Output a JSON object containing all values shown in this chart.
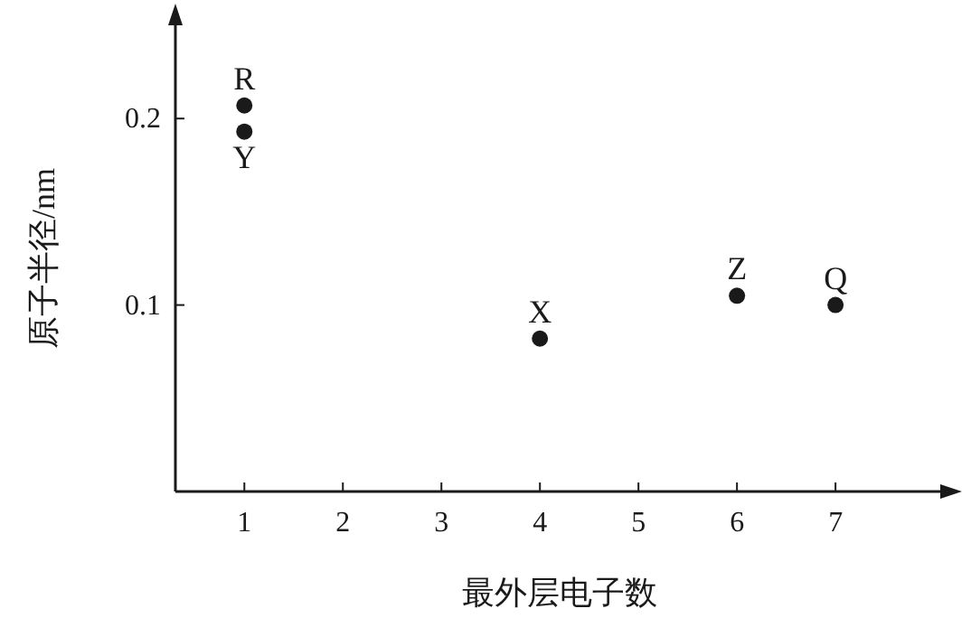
{
  "chart_data": {
    "type": "scatter",
    "xlabel": "最外层电子数",
    "ylabel": "原子半径/nm",
    "series": [
      {
        "color": "#1a1a1a",
        "x": [
          1,
          1,
          4,
          6,
          7
        ],
        "values": [
          0.207,
          0.193,
          0.082,
          0.105,
          0.1
        ]
      }
    ],
    "annotations": [
      {
        "text": "R",
        "x": 1,
        "y": 0.207
      },
      {
        "text": "Y",
        "x": 1,
        "y": 0.193
      },
      {
        "text": "X",
        "x": 4,
        "y": 0.082
      },
      {
        "text": "Z",
        "x": 6,
        "y": 0.105
      },
      {
        "text": "Q",
        "x": 7,
        "y": 0.1
      }
    ],
    "xlim": [
      0.3,
      8.1
    ],
    "ylim": [
      0,
      0.25
    ],
    "xticks": [
      1,
      2,
      3,
      4,
      5,
      6,
      7
    ],
    "yticks": [
      0.1,
      0.2
    ],
    "marker": "circle"
  }
}
